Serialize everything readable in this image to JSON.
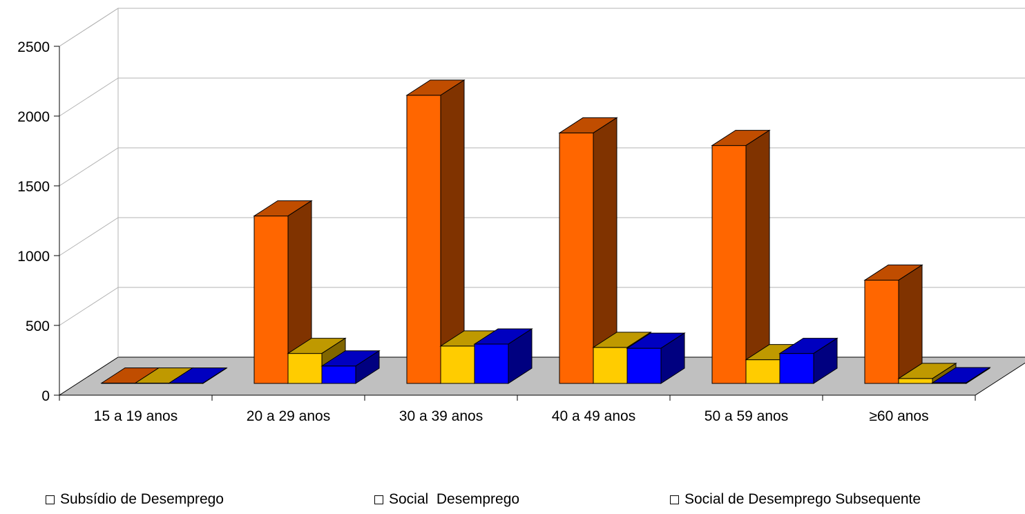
{
  "chart_data": {
    "type": "bar",
    "title": "",
    "xlabel": "",
    "ylabel": "",
    "ylim": [
      0,
      2500
    ],
    "yticks": [
      0,
      500,
      1000,
      1500,
      2000,
      2500
    ],
    "categories": [
      "15 a 19 anos",
      "20 a 29 anos",
      "30 a 39 anos",
      "40 a 49 anos",
      "50 a 59 anos",
      "≥60 anos"
    ],
    "series": [
      {
        "name": "Subsídio de Desemprego",
        "values": [
          2,
          1200,
          2065,
          1795,
          1705,
          740
        ]
      },
      {
        "name": "Social  Desemprego",
        "values": [
          2,
          215,
          268,
          258,
          170,
          35
        ]
      },
      {
        "name": "Social de Desemprego Subsequente",
        "values": [
          0,
          125,
          282,
          252,
          215,
          5
        ]
      }
    ],
    "colors": {
      "series": [
        "#ff6600",
        "#ffcc00",
        "#0000ff"
      ],
      "series_top": [
        "#c04d00",
        "#bf9900",
        "#0000c0"
      ],
      "series_side": [
        "#803300",
        "#806600",
        "#000080"
      ],
      "floor": "#c0c0c0",
      "grid": "#b3b3b3"
    },
    "grid": true,
    "legend_position": "bottom",
    "three_d": true
  }
}
